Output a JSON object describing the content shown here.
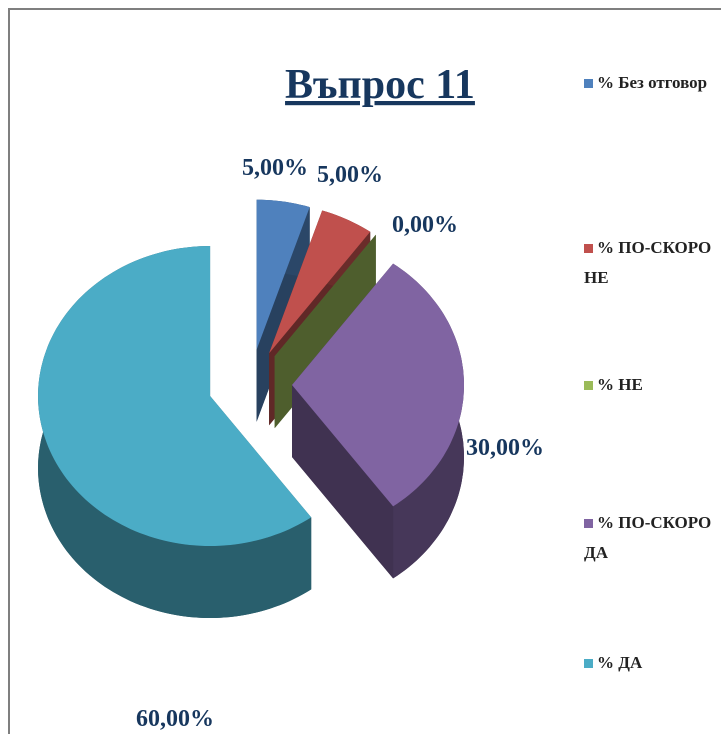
{
  "chart_data": {
    "type": "pie3d",
    "title": "Въпрос 11",
    "categories": [
      "% Без отговор",
      "% ПО-СКОРО НЕ",
      "% НЕ",
      "% ПО-СКОРО ДА",
      "% ДА"
    ],
    "values": [
      5,
      5,
      0,
      30,
      60
    ],
    "value_labels": [
      "5,00%",
      "5,00%",
      "0,00%",
      "30,00%",
      "60,00%"
    ],
    "colors": [
      "#4f81bd",
      "#c0504d",
      "#9bbb59",
      "#8064a2",
      "#4bacc6"
    ],
    "legend": "right"
  }
}
